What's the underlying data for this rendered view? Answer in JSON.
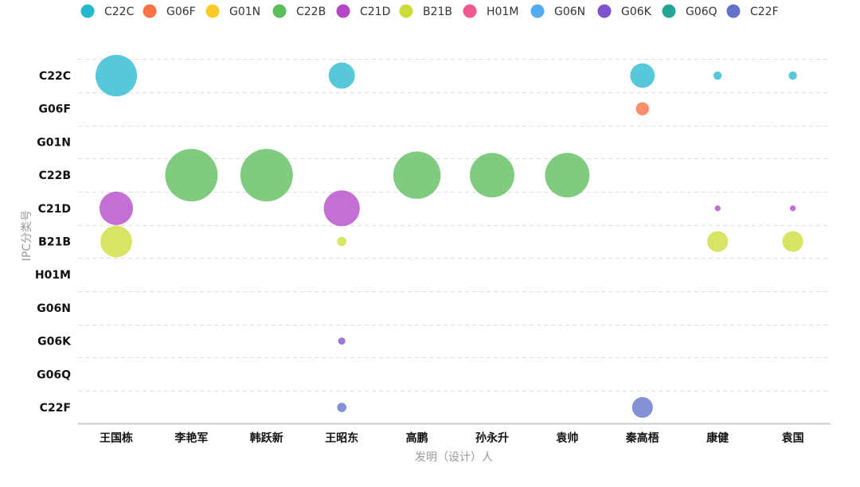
{
  "chart_data": {
    "type": "scatter",
    "subtype": "bubble",
    "xlabel": "发明（设计）人",
    "ylabel": "IPC分类号",
    "x_categories": [
      "王国栋",
      "李艳军",
      "韩跃新",
      "王昭东",
      "高鹏",
      "孙永升",
      "袁帅",
      "秦高梧",
      "康健",
      "袁国"
    ],
    "y_categories": [
      "C22C",
      "G06F",
      "G01N",
      "C22B",
      "C21D",
      "B21B",
      "H01M",
      "G06N",
      "G06K",
      "G06Q",
      "C22F"
    ],
    "legend": {
      "position": "top",
      "entries": [
        "C22C",
        "G06F",
        "G01N",
        "C22B",
        "C21D",
        "B21B",
        "H01M",
        "G06N",
        "G06K",
        "G06Q",
        "C22F"
      ]
    },
    "colors": {
      "C22C": "#26B8CF",
      "G06F": "#FF7043",
      "G01N": "#FFCA28",
      "C22B": "#5CBD5C",
      "C21D": "#B347C8",
      "B21B": "#CDDC39",
      "H01M": "#F0588F",
      "G06N": "#52ABEF",
      "G06K": "#7E52CC",
      "G06Q": "#26A596",
      "C22F": "#6272C8"
    },
    "grid": {
      "horizontal": true,
      "vertical": false,
      "style": "dashed"
    },
    "points": [
      {
        "x": "王国栋",
        "y": "C22C",
        "size": 100
      },
      {
        "x": "王国栋",
        "y": "C21D",
        "size": 65
      },
      {
        "x": "王国栋",
        "y": "B21B",
        "size": 58
      },
      {
        "x": "李艳军",
        "y": "C22B",
        "size": 160
      },
      {
        "x": "韩跃新",
        "y": "C22B",
        "size": 160
      },
      {
        "x": "王昭东",
        "y": "C22C",
        "size": 40
      },
      {
        "x": "王昭东",
        "y": "C21D",
        "size": 75
      },
      {
        "x": "王昭东",
        "y": "B21B",
        "size": 5
      },
      {
        "x": "王昭东",
        "y": "G06K",
        "size": 3
      },
      {
        "x": "王昭东",
        "y": "C22F",
        "size": 5
      },
      {
        "x": "高鹏",
        "y": "C22B",
        "size": 130
      },
      {
        "x": "孙永升",
        "y": "C22B",
        "size": 115
      },
      {
        "x": "袁帅",
        "y": "C22B",
        "size": 115
      },
      {
        "x": "秦高梧",
        "y": "C22C",
        "size": 35
      },
      {
        "x": "秦高梧",
        "y": "G06F",
        "size": 10
      },
      {
        "x": "秦高梧",
        "y": "C22F",
        "size": 25
      },
      {
        "x": "康健",
        "y": "C22C",
        "size": 4
      },
      {
        "x": "康健",
        "y": "C21D",
        "size": 2
      },
      {
        "x": "康健",
        "y": "B21B",
        "size": 25
      },
      {
        "x": "袁国",
        "y": "C22C",
        "size": 4
      },
      {
        "x": "袁国",
        "y": "C21D",
        "size": 2
      },
      {
        "x": "袁国",
        "y": "B21B",
        "size": 25
      }
    ]
  }
}
